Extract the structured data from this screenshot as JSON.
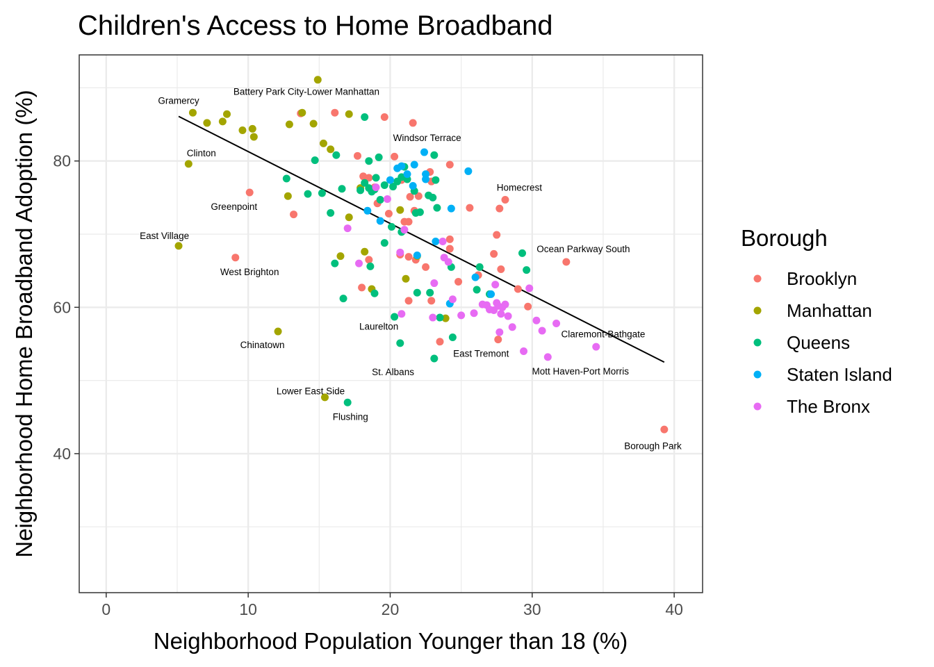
{
  "chart_data": {
    "type": "scatter",
    "title": "Children's Access to Home Broadband",
    "xlabel": "Neighborhood Population Younger than 18 (%)",
    "ylabel": "Neighborhood Home Broadband Adoption (%)",
    "xlim": [
      -1.9,
      42.0
    ],
    "ylim": [
      21.0,
      94.5
    ],
    "x_ticks": [
      0,
      10,
      20,
      30,
      40
    ],
    "y_ticks": [
      40,
      60,
      80
    ],
    "grid": true,
    "legend": {
      "title": "Borough",
      "position": "right",
      "entries": [
        {
          "name": "Brooklyn",
          "color": "#F8766D"
        },
        {
          "name": "Manhattan",
          "color": "#A3A500"
        },
        {
          "name": "Queens",
          "color": "#00BF7D"
        },
        {
          "name": "Staten Island",
          "color": "#00B0F6"
        },
        {
          "name": "The Bronx",
          "color": "#E76BF3"
        }
      ]
    },
    "trend_line": {
      "x": [
        5.1,
        39.3
      ],
      "y": [
        86.1,
        52.5
      ]
    },
    "series": [
      {
        "name": "Brooklyn",
        "color": "#F8766D",
        "points": [
          [
            10.1,
            75.7
          ],
          [
            9.1,
            66.8
          ],
          [
            13.2,
            72.7
          ],
          [
            13.7,
            86.5
          ],
          [
            16.1,
            86.6
          ],
          [
            17.7,
            80.7
          ],
          [
            18.1,
            77.9
          ],
          [
            18.5,
            77.7
          ],
          [
            18.9,
            76.4
          ],
          [
            19.1,
            74.2
          ],
          [
            19.6,
            86.0
          ],
          [
            19.9,
            72.8
          ],
          [
            20.3,
            80.6
          ],
          [
            20.8,
            77.4
          ],
          [
            21.0,
            71.7
          ],
          [
            21.3,
            71.7
          ],
          [
            21.4,
            75.1
          ],
          [
            21.6,
            85.2
          ],
          [
            21.7,
            73.2
          ],
          [
            22.0,
            75.2
          ],
          [
            22.8,
            78.5
          ],
          [
            22.9,
            77.2
          ],
          [
            24.2,
            79.5
          ],
          [
            24.2,
            69.3
          ],
          [
            24.2,
            68.0
          ],
          [
            25.6,
            73.6
          ],
          [
            27.7,
            73.5
          ],
          [
            28.1,
            74.7
          ],
          [
            27.5,
            69.9
          ],
          [
            27.3,
            67.3
          ],
          [
            27.8,
            65.2
          ],
          [
            26.2,
            64.4
          ],
          [
            24.8,
            63.5
          ],
          [
            22.5,
            65.5
          ],
          [
            21.8,
            66.5
          ],
          [
            21.3,
            66.9
          ],
          [
            20.7,
            67.2
          ],
          [
            18.5,
            66.5
          ],
          [
            18.0,
            62.7
          ],
          [
            21.3,
            60.9
          ],
          [
            22.9,
            60.9
          ],
          [
            29.0,
            62.5
          ],
          [
            29.7,
            60.1
          ],
          [
            32.4,
            66.2
          ],
          [
            23.5,
            55.3
          ],
          [
            27.6,
            55.6
          ],
          [
            39.3,
            43.3
          ]
        ]
      },
      {
        "name": "Manhattan",
        "color": "#A3A500",
        "points": [
          [
            5.1,
            68.4
          ],
          [
            5.8,
            79.6
          ],
          [
            6.1,
            86.6
          ],
          [
            7.1,
            85.2
          ],
          [
            8.2,
            85.4
          ],
          [
            8.5,
            86.4
          ],
          [
            9.6,
            84.2
          ],
          [
            10.3,
            84.4
          ],
          [
            10.4,
            83.3
          ],
          [
            12.8,
            75.2
          ],
          [
            12.9,
            85.0
          ],
          [
            13.8,
            86.6
          ],
          [
            14.6,
            85.1
          ],
          [
            14.9,
            91.1
          ],
          [
            15.3,
            82.4
          ],
          [
            15.8,
            81.6
          ],
          [
            17.1,
            86.4
          ],
          [
            17.1,
            72.3
          ],
          [
            17.9,
            76.3
          ],
          [
            16.5,
            67.0
          ],
          [
            18.2,
            67.6
          ],
          [
            18.7,
            62.5
          ],
          [
            20.7,
            73.3
          ],
          [
            21.1,
            63.9
          ],
          [
            21.9,
            67.0
          ],
          [
            12.1,
            56.7
          ],
          [
            15.4,
            47.7
          ],
          [
            23.9,
            58.5
          ]
        ]
      },
      {
        "name": "Queens",
        "color": "#00BF7D",
        "points": [
          [
            12.7,
            77.6
          ],
          [
            14.2,
            75.5
          ],
          [
            14.7,
            80.1
          ],
          [
            15.2,
            75.6
          ],
          [
            15.8,
            72.9
          ],
          [
            16.2,
            80.8
          ],
          [
            16.6,
            76.2
          ],
          [
            18.2,
            86.0
          ],
          [
            18.5,
            80.0
          ],
          [
            19.2,
            80.5
          ],
          [
            17.9,
            76.0
          ],
          [
            18.2,
            77.0
          ],
          [
            18.5,
            76.3
          ],
          [
            18.7,
            75.8
          ],
          [
            18.9,
            76.1
          ],
          [
            19.0,
            77.7
          ],
          [
            19.3,
            74.7
          ],
          [
            19.6,
            76.7
          ],
          [
            20.2,
            76.5
          ],
          [
            20.5,
            77.2
          ],
          [
            20.8,
            77.8
          ],
          [
            21.0,
            79.2
          ],
          [
            21.2,
            77.5
          ],
          [
            21.7,
            75.9
          ],
          [
            21.8,
            72.9
          ],
          [
            22.1,
            73.0
          ],
          [
            22.7,
            75.3
          ],
          [
            23.0,
            75.0
          ],
          [
            23.2,
            77.4
          ],
          [
            23.1,
            80.8
          ],
          [
            23.3,
            73.6
          ],
          [
            20.1,
            71.0
          ],
          [
            20.8,
            70.3
          ],
          [
            19.6,
            68.8
          ],
          [
            16.1,
            66.0
          ],
          [
            18.6,
            65.6
          ],
          [
            16.7,
            61.2
          ],
          [
            18.9,
            61.9
          ],
          [
            20.3,
            58.7
          ],
          [
            20.7,
            55.1
          ],
          [
            21.9,
            62.0
          ],
          [
            22.8,
            62.0
          ],
          [
            23.5,
            58.6
          ],
          [
            23.1,
            53.0
          ],
          [
            24.4,
            55.9
          ],
          [
            24.3,
            65.5
          ],
          [
            26.1,
            62.4
          ],
          [
            26.3,
            65.5
          ],
          [
            27.0,
            61.8
          ],
          [
            29.3,
            67.4
          ],
          [
            29.6,
            65.1
          ],
          [
            17.0,
            47.0
          ]
        ]
      },
      {
        "name": "Staten Island",
        "color": "#00B0F6",
        "points": [
          [
            18.4,
            73.2
          ],
          [
            19.3,
            71.8
          ],
          [
            20.0,
            77.4
          ],
          [
            20.5,
            79.0
          ],
          [
            20.8,
            79.3
          ],
          [
            21.2,
            78.2
          ],
          [
            21.6,
            76.6
          ],
          [
            21.7,
            79.5
          ],
          [
            22.4,
            81.2
          ],
          [
            22.5,
            77.5
          ],
          [
            22.5,
            78.2
          ],
          [
            23.2,
            69.0
          ],
          [
            21.9,
            67.1
          ],
          [
            24.3,
            73.5
          ],
          [
            25.5,
            78.6
          ],
          [
            26.0,
            64.1
          ],
          [
            24.2,
            60.5
          ],
          [
            27.1,
            61.8
          ]
        ]
      },
      {
        "name": "The Bronx",
        "color": "#E76BF3",
        "points": [
          [
            17.0,
            70.8
          ],
          [
            17.8,
            66.0
          ],
          [
            19.8,
            74.8
          ],
          [
            19.0,
            76.4
          ],
          [
            20.7,
            67.5
          ],
          [
            21.0,
            70.6
          ],
          [
            20.8,
            59.1
          ],
          [
            23.1,
            63.3
          ],
          [
            23.0,
            58.6
          ],
          [
            23.7,
            69.0
          ],
          [
            23.8,
            66.8
          ],
          [
            24.1,
            66.2
          ],
          [
            24.4,
            61.1
          ],
          [
            25.0,
            58.9
          ],
          [
            25.9,
            59.2
          ],
          [
            26.5,
            60.4
          ],
          [
            26.8,
            60.3
          ],
          [
            27.0,
            59.7
          ],
          [
            27.3,
            59.6
          ],
          [
            27.4,
            63.1
          ],
          [
            27.5,
            60.6
          ],
          [
            27.6,
            60.2
          ],
          [
            27.9,
            60.0
          ],
          [
            28.1,
            60.4
          ],
          [
            27.8,
            59.1
          ],
          [
            28.3,
            58.8
          ],
          [
            28.6,
            57.3
          ],
          [
            27.7,
            56.6
          ],
          [
            29.4,
            54.0
          ],
          [
            29.8,
            62.6
          ],
          [
            30.3,
            58.2
          ],
          [
            30.7,
            56.8
          ],
          [
            31.1,
            53.2
          ],
          [
            31.7,
            57.8
          ],
          [
            34.5,
            54.6
          ]
        ]
      }
    ],
    "annotations": [
      {
        "label": "Gramercy",
        "x": 5.1,
        "y": 88.2
      },
      {
        "label": "Battery Park City-Lower Manhattan",
        "x": 14.1,
        "y": 89.4
      },
      {
        "label": "Windsor Terrace",
        "x": 22.6,
        "y": 83.1
      },
      {
        "label": "Clinton",
        "x": 6.7,
        "y": 81.0
      },
      {
        "label": "Homecrest",
        "x": 29.1,
        "y": 76.3
      },
      {
        "label": "Greenpoint",
        "x": 9.0,
        "y": 73.7
      },
      {
        "label": "East Village",
        "x": 4.1,
        "y": 69.7
      },
      {
        "label": "Ocean Parkway South",
        "x": 33.6,
        "y": 67.9
      },
      {
        "label": "West Brighton",
        "x": 10.1,
        "y": 64.8
      },
      {
        "label": "Laurelton",
        "x": 19.2,
        "y": 57.3
      },
      {
        "label": "Claremont-Bathgate",
        "x": 35.0,
        "y": 56.3
      },
      {
        "label": "Chinatown",
        "x": 11.0,
        "y": 54.8
      },
      {
        "label": "East Tremont",
        "x": 26.4,
        "y": 53.6
      },
      {
        "label": "St. Albans",
        "x": 20.2,
        "y": 51.1
      },
      {
        "label": "Mott Haven-Port Morris",
        "x": 33.4,
        "y": 51.2
      },
      {
        "label": "Lower East Side",
        "x": 14.4,
        "y": 48.5
      },
      {
        "label": "Flushing",
        "x": 17.2,
        "y": 45.0
      },
      {
        "label": "Borough Park",
        "x": 38.5,
        "y": 41.0
      }
    ]
  }
}
